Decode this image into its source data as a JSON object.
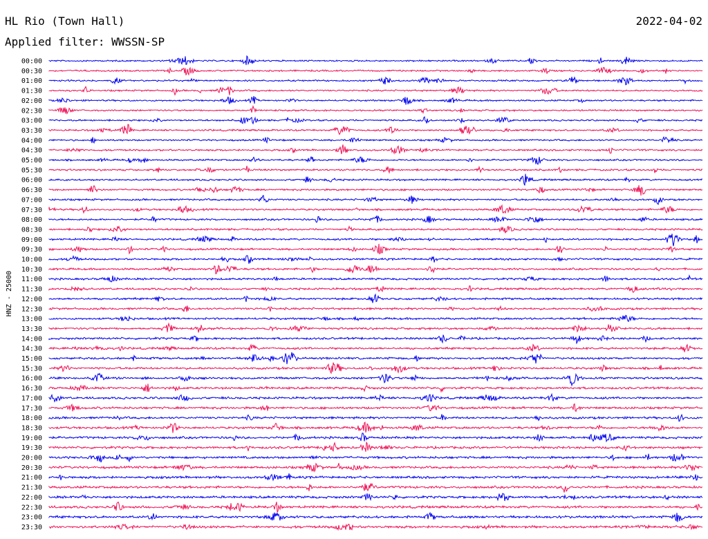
{
  "header": {
    "station": "HL Rio (Town Hall)",
    "date": "2022-04-02",
    "filter_text": "Applied filter: WWSSN-SP"
  },
  "chart_data": {
    "type": "line",
    "title": "HL Rio (Town Hall)",
    "ylabel": "HNZ - 25000",
    "colors": [
      "#0000ee",
      "#ee1155"
    ],
    "row_labels": [
      "00:00",
      "00:30",
      "01:00",
      "01:30",
      "02:00",
      "02:30",
      "03:00",
      "03:30",
      "04:00",
      "04:30",
      "05:00",
      "05:30",
      "06:00",
      "06:30",
      "07:00",
      "07:30",
      "08:00",
      "08:30",
      "09:00",
      "09:30",
      "10:00",
      "10:30",
      "11:00",
      "11:30",
      "12:00",
      "12:30",
      "13:00",
      "13:30",
      "14:00",
      "14:30",
      "15:00",
      "15:30",
      "16:00",
      "16:30",
      "17:00",
      "17:30",
      "18:00",
      "18:30",
      "19:00",
      "19:30",
      "20:00",
      "20:30",
      "21:00",
      "21:30",
      "22:00",
      "22:30",
      "23:00",
      "23:30"
    ],
    "series_note": "Each row is a continuous seismic trace (noise amplitude); values not individually readable."
  }
}
